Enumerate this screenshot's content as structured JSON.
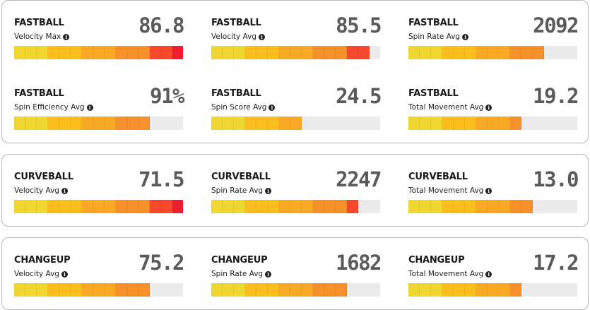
{
  "palette": {
    "card_border": "#b9b9b9",
    "track": "#ebebeb",
    "value_text": "#5a5a5a",
    "segment_colors": [
      "#f0d630",
      "#f0d630",
      "#f0d630",
      "#fbbe1d",
      "#fbbe1d",
      "#fbbe1d",
      "#f9a924",
      "#f9a924",
      "#f9a924",
      "#f6902a",
      "#f6902a",
      "#f6902a",
      "#f5482c",
      "#f5482c",
      "#ec1f2e"
    ]
  },
  "groups": [
    {
      "id": "fastball",
      "metrics": [
        {
          "pitch": "FASTBALL",
          "label": "Velocity Max",
          "value": "86.8",
          "fill_segments": 15
        },
        {
          "pitch": "FASTBALL",
          "label": "Velocity Avg",
          "value": "85.5",
          "fill_segments": 14
        },
        {
          "pitch": "FASTBALL",
          "label": "Spin Rate Avg",
          "value": "2092",
          "fill_segments": 12
        },
        {
          "pitch": "FASTBALL",
          "label": "Spin Efficiency Avg",
          "value": "91%",
          "fill_segments": 12
        },
        {
          "pitch": "FASTBALL",
          "label": "Spin Score Avg",
          "value": "24.5",
          "fill_segments": 8
        },
        {
          "pitch": "FASTBALL",
          "label": "Total Movement Avg",
          "value": "19.2",
          "fill_segments": 10
        }
      ]
    },
    {
      "id": "curveball",
      "metrics": [
        {
          "pitch": "CURVEBALL",
          "label": "Velocity Avg",
          "value": "71.5",
          "fill_segments": 15
        },
        {
          "pitch": "CURVEBALL",
          "label": "Spin Rate Avg",
          "value": "2247",
          "fill_segments": 13
        },
        {
          "pitch": "CURVEBALL",
          "label": "Total Movement Avg",
          "value": "13.0",
          "fill_segments": 11
        }
      ]
    },
    {
      "id": "changeup",
      "metrics": [
        {
          "pitch": "CHANGEUP",
          "label": "Velocity Avg",
          "value": "75.2",
          "fill_segments": 12
        },
        {
          "pitch": "CHANGEUP",
          "label": "Spin Rate Avg",
          "value": "1682",
          "fill_segments": 12
        },
        {
          "pitch": "CHANGEUP",
          "label": "Total Movement Avg",
          "value": "17.2",
          "fill_segments": 10
        }
      ]
    }
  ],
  "info_icon": "info-circle-icon"
}
